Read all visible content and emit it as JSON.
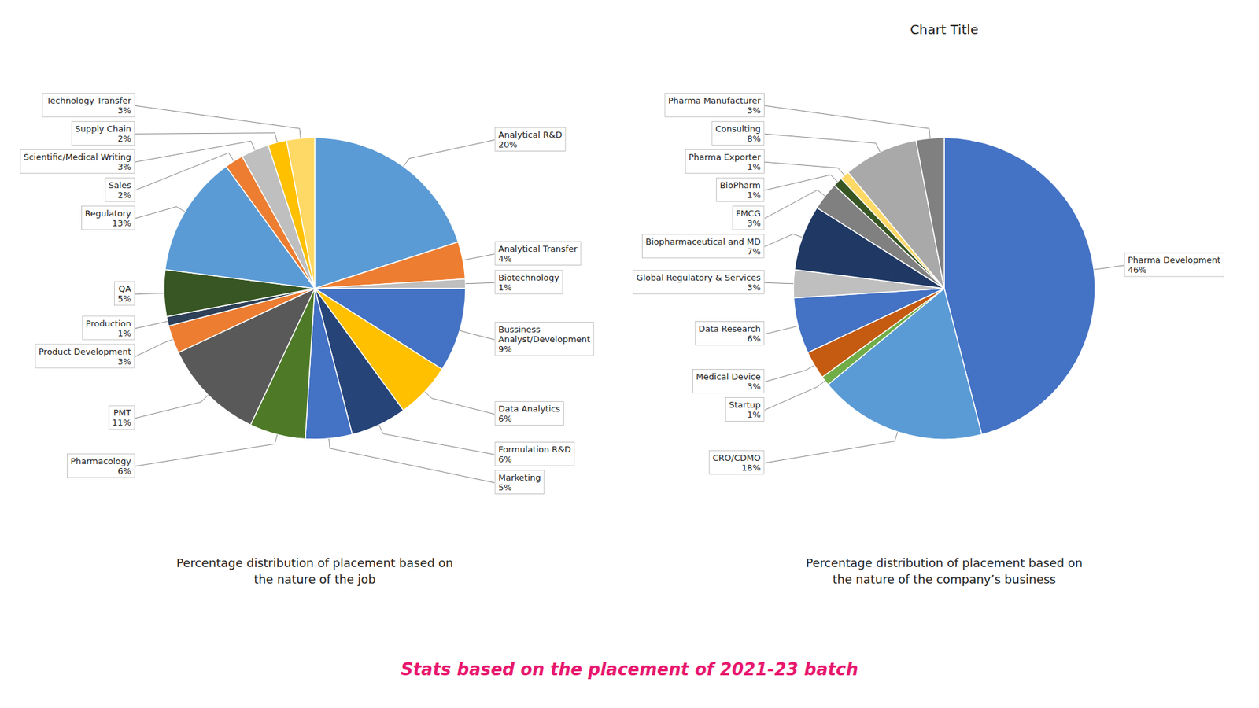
{
  "title": "Stats based on the placement of 2021-23 batch",
  "chart_data": [
    {
      "type": "pie",
      "subtitle": "Percentage distribution of placement based on\nthe nature of the job",
      "categories": [
        "Analytical R&D",
        "Analytical Transfer",
        "Biotechnology",
        "Bussiness\nAnalyst/Development",
        "Data Analytics",
        "Formulation R&D",
        "Marketing",
        "Pharmacology",
        "PMT",
        "Product Development",
        "Production",
        "QA",
        "Regulatory",
        "Sales",
        "Scientific/Medical Writing",
        "Supply Chain",
        "Technology Transfer"
      ],
      "values": [
        20,
        4,
        1,
        9,
        6,
        6,
        5,
        6,
        11,
        3,
        1,
        5,
        13,
        2,
        3,
        2,
        3
      ],
      "value_labels": [
        "20%",
        "4%",
        "1%",
        "9%",
        "6%",
        "6%",
        "5%",
        "6%",
        "11%",
        "3%",
        "1%",
        "5%",
        "13%",
        "2%",
        "3%",
        "2%",
        "3%"
      ],
      "colors": [
        "#5b9bd5",
        "#ed7d31",
        "#bfbfbf",
        "#4472c4",
        "#ffc000",
        "#264478",
        "#4472c4",
        "#4e7a28",
        "#595959",
        "#ed7d31",
        "#2e4057",
        "#375623",
        "#5b9bd5",
        "#ed7d31",
        "#bfbfbf",
        "#ffc000",
        "#ffd966"
      ],
      "data_labels": true
    },
    {
      "type": "pie",
      "title": "Chart Title",
      "subtitle": "Percentage distribution of placement based on\nthe nature of the company’s business",
      "categories": [
        "Pharma Development",
        "CRO/CDMO",
        "Startup",
        "Medical Device",
        "Data Research",
        "Global Regulatory & Services",
        "Biopharmaceutical and MD",
        "FMCG",
        "BioPharm",
        "Pharma Exporter",
        "Consulting",
        "Pharma Manufacturer"
      ],
      "values": [
        46,
        18,
        1,
        3,
        6,
        3,
        7,
        3,
        1,
        1,
        8,
        3
      ],
      "value_labels": [
        "46%",
        "18%",
        "1%",
        "3%",
        "6%",
        "3%",
        "7%",
        "3%",
        "1%",
        "1%",
        "8%",
        "3%"
      ],
      "colors": [
        "#4472c4",
        "#5b9bd5",
        "#70ad47",
        "#c55a11",
        "#4472c4",
        "#bfbfbf",
        "#1f3864",
        "#808080",
        "#375623",
        "#ffd966",
        "#a9a9a9",
        "#808080"
      ],
      "data_labels": true
    }
  ]
}
